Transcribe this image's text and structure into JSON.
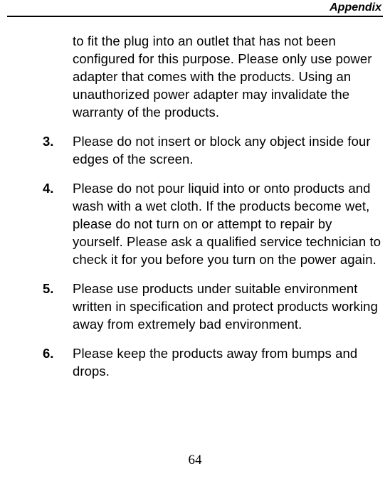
{
  "header": {
    "title": "Appendix"
  },
  "items": [
    {
      "num": "",
      "text": "to fit the plug into an outlet that has not been configured for this purpose. Please only use power adapter that comes with the products. Using an unauthorized power adapter may invalidate the warranty of the products."
    },
    {
      "num": "3.",
      "text": "Please do not insert or block any object inside four edges of the screen."
    },
    {
      "num": "4.",
      "text": "Please do not pour liquid into or onto products and wash with a wet cloth. If the products become wet, please do not turn on or attempt to repair by yourself. Please ask a qualified service technician to check it for you before you turn on the power again."
    },
    {
      "num": "5.",
      "text": "Please use products under suitable environment written in specification and protect products working away from extremely bad environment."
    },
    {
      "num": "6.",
      "text": "Please keep the products away from bumps and drops."
    }
  ],
  "page_number": "64"
}
